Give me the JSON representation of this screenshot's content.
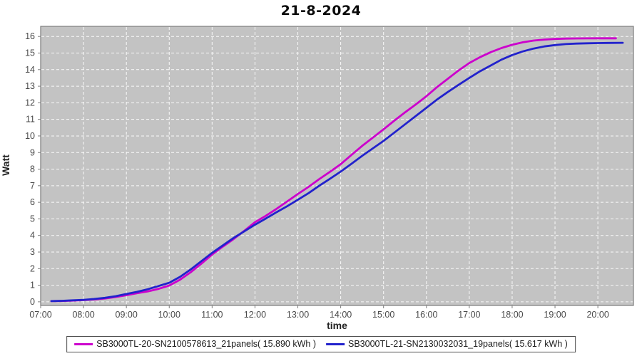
{
  "title": "21-8-2024",
  "axes": {
    "x_label": "time",
    "y_label": "Watt"
  },
  "colors": {
    "plot_background": "#c3c3c3",
    "grid": "#ffffff",
    "plot_border": "#7d7d7d",
    "tick_text": "#4a4a4a",
    "series_magenta": "#cc00cc",
    "series_blue": "#2222cc"
  },
  "chart_data": {
    "type": "line",
    "title": "21-8-2024",
    "xlabel": "time",
    "ylabel": "Watt",
    "grid": true,
    "legend_position": "bottom",
    "xlim": [
      7.0,
      20.83
    ],
    "ylim": [
      -0.22,
      16.61
    ],
    "x_ticks": [
      7,
      8,
      9,
      10,
      11,
      12,
      13,
      14,
      15,
      16,
      17,
      18,
      19,
      20
    ],
    "x_tick_labels": [
      "07:00",
      "08:00",
      "09:00",
      "10:00",
      "11:00",
      "12:00",
      "13:00",
      "14:00",
      "15:00",
      "16:00",
      "17:00",
      "18:00",
      "19:00",
      "20:00"
    ],
    "y_ticks": [
      0,
      1,
      2,
      3,
      4,
      5,
      6,
      7,
      8,
      9,
      10,
      11,
      12,
      13,
      14,
      15,
      16
    ],
    "series": [
      {
        "name": "SB3000TL-20-SN2100578613_21panels( 15.890 kWh )",
        "color": "#cc00cc",
        "points": [
          [
            7.25,
            0.04
          ],
          [
            7.5,
            0.05
          ],
          [
            7.75,
            0.07
          ],
          [
            8.0,
            0.1
          ],
          [
            8.25,
            0.14
          ],
          [
            8.5,
            0.2
          ],
          [
            8.75,
            0.29
          ],
          [
            9.0,
            0.4
          ],
          [
            9.25,
            0.52
          ],
          [
            9.5,
            0.63
          ],
          [
            9.75,
            0.78
          ],
          [
            10.0,
            0.98
          ],
          [
            10.25,
            1.33
          ],
          [
            10.5,
            1.78
          ],
          [
            10.75,
            2.3
          ],
          [
            11.0,
            2.85
          ],
          [
            11.25,
            3.33
          ],
          [
            11.5,
            3.78
          ],
          [
            11.75,
            4.28
          ],
          [
            12.0,
            4.8
          ],
          [
            12.25,
            5.18
          ],
          [
            12.5,
            5.6
          ],
          [
            12.75,
            6.05
          ],
          [
            13.0,
            6.5
          ],
          [
            13.25,
            6.93
          ],
          [
            13.5,
            7.4
          ],
          [
            13.75,
            7.84
          ],
          [
            14.0,
            8.3
          ],
          [
            14.25,
            8.85
          ],
          [
            14.5,
            9.4
          ],
          [
            14.75,
            9.9
          ],
          [
            15.0,
            10.4
          ],
          [
            15.25,
            10.92
          ],
          [
            15.5,
            11.42
          ],
          [
            15.75,
            11.9
          ],
          [
            16.0,
            12.4
          ],
          [
            16.25,
            12.95
          ],
          [
            16.5,
            13.45
          ],
          [
            16.75,
            13.95
          ],
          [
            17.0,
            14.4
          ],
          [
            17.25,
            14.75
          ],
          [
            17.5,
            15.05
          ],
          [
            17.75,
            15.3
          ],
          [
            18.0,
            15.5
          ],
          [
            18.25,
            15.65
          ],
          [
            18.5,
            15.75
          ],
          [
            18.75,
            15.81
          ],
          [
            19.0,
            15.85
          ],
          [
            19.25,
            15.87
          ],
          [
            19.5,
            15.88
          ],
          [
            19.75,
            15.885
          ],
          [
            20.0,
            15.89
          ],
          [
            20.2,
            15.89
          ],
          [
            20.42,
            15.89
          ]
        ]
      },
      {
        "name": "SB3000TL-21-SN2130032031_19panels( 15.617 kWh )",
        "color": "#2222cc",
        "points": [
          [
            7.25,
            0.04
          ],
          [
            7.5,
            0.06
          ],
          [
            7.75,
            0.09
          ],
          [
            8.0,
            0.12
          ],
          [
            8.25,
            0.17
          ],
          [
            8.5,
            0.24
          ],
          [
            8.75,
            0.34
          ],
          [
            9.0,
            0.47
          ],
          [
            9.25,
            0.6
          ],
          [
            9.5,
            0.76
          ],
          [
            9.75,
            0.95
          ],
          [
            10.0,
            1.15
          ],
          [
            10.25,
            1.5
          ],
          [
            10.5,
            1.95
          ],
          [
            10.75,
            2.45
          ],
          [
            11.0,
            2.95
          ],
          [
            11.25,
            3.4
          ],
          [
            11.5,
            3.85
          ],
          [
            11.75,
            4.25
          ],
          [
            12.0,
            4.65
          ],
          [
            12.25,
            5.02
          ],
          [
            12.5,
            5.4
          ],
          [
            12.75,
            5.76
          ],
          [
            13.0,
            6.15
          ],
          [
            13.25,
            6.55
          ],
          [
            13.5,
            7.0
          ],
          [
            13.75,
            7.42
          ],
          [
            14.0,
            7.85
          ],
          [
            14.25,
            8.32
          ],
          [
            14.5,
            8.8
          ],
          [
            14.75,
            9.25
          ],
          [
            15.0,
            9.7
          ],
          [
            15.25,
            10.2
          ],
          [
            15.5,
            10.7
          ],
          [
            15.75,
            11.2
          ],
          [
            16.0,
            11.7
          ],
          [
            16.25,
            12.2
          ],
          [
            16.5,
            12.65
          ],
          [
            16.75,
            13.08
          ],
          [
            17.0,
            13.5
          ],
          [
            17.25,
            13.9
          ],
          [
            17.5,
            14.25
          ],
          [
            17.75,
            14.6
          ],
          [
            18.0,
            14.88
          ],
          [
            18.25,
            15.1
          ],
          [
            18.5,
            15.27
          ],
          [
            18.75,
            15.4
          ],
          [
            19.0,
            15.48
          ],
          [
            19.25,
            15.54
          ],
          [
            19.5,
            15.57
          ],
          [
            19.75,
            15.59
          ],
          [
            20.0,
            15.6
          ],
          [
            20.25,
            15.61
          ],
          [
            20.58,
            15.62
          ]
        ]
      }
    ]
  }
}
